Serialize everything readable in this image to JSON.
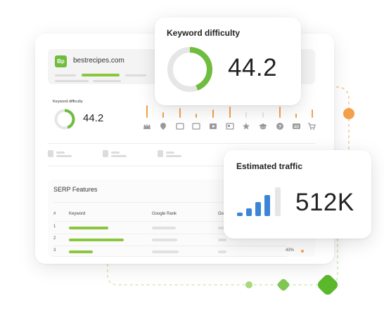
{
  "domain": {
    "logo_text": "Bp",
    "name": "bestrecipes.com"
  },
  "keyword_difficulty": {
    "label": "Keyword difficulty",
    "value": "44.2",
    "fill_fraction": 0.442
  },
  "kd_card": {
    "title": "Keyword difficulty",
    "value": "44.2",
    "fill_fraction": 0.442
  },
  "serp_features": {
    "title": "SERP Features",
    "columns": [
      "#",
      "Keyword",
      "Google Rank",
      "Go"
    ],
    "rows": [
      {
        "num": "1"
      },
      {
        "num": "2"
      },
      {
        "num": "3",
        "pct": "43%"
      }
    ],
    "icons": [
      "crown-icon",
      "location-pin-icon",
      "image-icon",
      "news-icon",
      "video-icon",
      "article-icon",
      "star-icon",
      "graduation-cap-icon",
      "question-icon",
      "ad-icon",
      "shopping-cart-icon"
    ]
  },
  "traffic_card": {
    "title": "Estimated traffic",
    "value": "512K"
  },
  "colors": {
    "green": "#6ebd3e",
    "light_green": "#8cc63f",
    "orange": "#f5a04a",
    "blue": "#3a85d8",
    "grey": "#e6e6e6"
  }
}
